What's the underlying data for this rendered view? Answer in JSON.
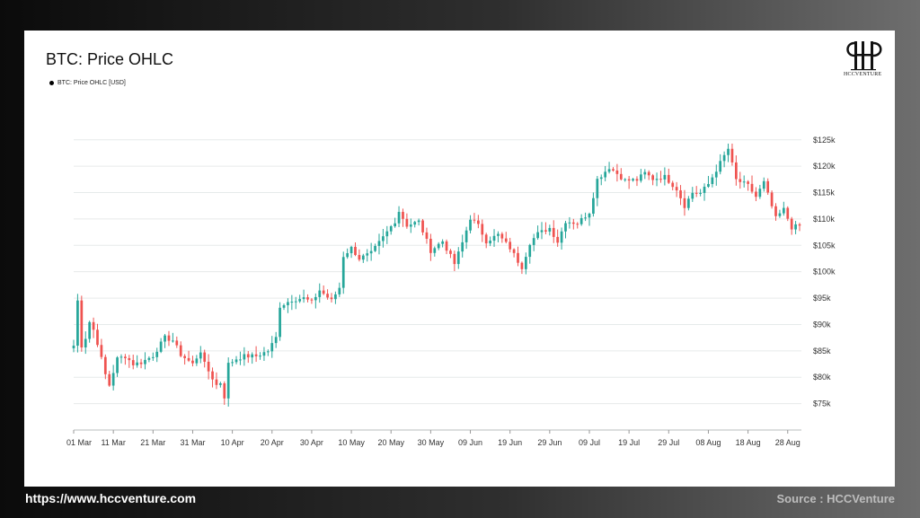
{
  "footer": {
    "url": "https://www.hccventure.com",
    "source": "Source : HCCVenture"
  },
  "logo": {
    "text": "HCCVENTURE"
  },
  "colors": {
    "up": "#26a69a",
    "down": "#ef5350",
    "grid": "#e6eaea"
  },
  "chart_data": {
    "type": "candlestick",
    "title": "BTC: Price OHLC",
    "legend": [
      "BTC: Price OHLC [USD]"
    ],
    "legend_position": "top-left",
    "grid": true,
    "y_axis": {
      "position": "right",
      "ylim": [
        70000,
        127000
      ],
      "ticks": [
        75000,
        80000,
        85000,
        90000,
        95000,
        100000,
        105000,
        110000,
        115000,
        120000,
        125000
      ],
      "tick_labels": [
        "$75k",
        "$80k",
        "$85k",
        "$90k",
        "$95k",
        "$100k",
        "$105k",
        "$110k",
        "$115k",
        "$120k",
        "$125k"
      ]
    },
    "x_axis": {
      "start": "2025-03-01",
      "end": "2025-08-31",
      "tick_dates": [
        "2025-03-01",
        "2025-03-11",
        "2025-03-21",
        "2025-03-31",
        "2025-04-10",
        "2025-04-20",
        "2025-04-30",
        "2025-05-10",
        "2025-05-20",
        "2025-05-30",
        "2025-06-09",
        "2025-06-19",
        "2025-06-29",
        "2025-07-09",
        "2025-07-19",
        "2025-07-29",
        "2025-08-08",
        "2025-08-18",
        "2025-08-28"
      ],
      "tick_labels": [
        "01 Mar",
        "11 Mar",
        "21 Mar",
        "31 Mar",
        "10 Apr",
        "20 Apr",
        "30 Apr",
        "10 May",
        "20 May",
        "30 May",
        "09 Jun",
        "19 Jun",
        "29 Jun",
        "09 Jul",
        "19 Jul",
        "29 Jul",
        "08 Aug",
        "18 Aug",
        "28 Aug"
      ]
    },
    "close_anchors": [
      [
        "2025-03-01",
        86000
      ],
      [
        "2025-03-02",
        94500
      ],
      [
        "2025-03-03",
        86000
      ],
      [
        "2025-03-04",
        87500
      ],
      [
        "2025-03-05",
        90500
      ],
      [
        "2025-03-06",
        89000
      ],
      [
        "2025-03-07",
        86500
      ],
      [
        "2025-03-09",
        80500
      ],
      [
        "2025-03-10",
        78500
      ],
      [
        "2025-03-12",
        83500
      ],
      [
        "2025-03-14",
        84000
      ],
      [
        "2025-03-16",
        82500
      ],
      [
        "2025-03-18",
        82800
      ],
      [
        "2025-03-21",
        84100
      ],
      [
        "2025-03-24",
        87500
      ],
      [
        "2025-03-26",
        87000
      ],
      [
        "2025-03-28",
        84300
      ],
      [
        "2025-03-31",
        82500
      ],
      [
        "2025-04-02",
        85000
      ],
      [
        "2025-04-03",
        82500
      ],
      [
        "2025-04-06",
        78500
      ],
      [
        "2025-04-07",
        79000
      ],
      [
        "2025-04-08",
        76300
      ],
      [
        "2025-04-09",
        82500
      ],
      [
        "2025-04-11",
        83500
      ],
      [
        "2025-04-13",
        84000
      ],
      [
        "2025-04-16",
        84000
      ],
      [
        "2025-04-19",
        85000
      ],
      [
        "2025-04-21",
        87500
      ],
      [
        "2025-04-22",
        93500
      ],
      [
        "2025-04-25",
        94700
      ],
      [
        "2025-04-28",
        95000
      ],
      [
        "2025-04-30",
        94200
      ],
      [
        "2025-05-02",
        96500
      ],
      [
        "2025-05-05",
        94500
      ],
      [
        "2025-05-07",
        97000
      ],
      [
        "2025-05-08",
        103000
      ],
      [
        "2025-05-10",
        104500
      ],
      [
        "2025-05-12",
        102500
      ],
      [
        "2025-05-15",
        103500
      ],
      [
        "2025-05-18",
        106500
      ],
      [
        "2025-05-21",
        109600
      ],
      [
        "2025-05-22",
        111500
      ],
      [
        "2025-05-24",
        108800
      ],
      [
        "2025-05-27",
        109500
      ],
      [
        "2025-05-30",
        104000
      ],
      [
        "2025-06-02",
        105800
      ],
      [
        "2025-06-05",
        101500
      ],
      [
        "2025-06-07",
        105500
      ],
      [
        "2025-06-09",
        110200
      ],
      [
        "2025-06-11",
        108700
      ],
      [
        "2025-06-13",
        105800
      ],
      [
        "2025-06-16",
        107000
      ],
      [
        "2025-06-19",
        104500
      ],
      [
        "2025-06-21",
        102000
      ],
      [
        "2025-06-22",
        100900
      ],
      [
        "2025-06-24",
        105500
      ],
      [
        "2025-06-26",
        107200
      ],
      [
        "2025-06-29",
        108300
      ],
      [
        "2025-07-01",
        105700
      ],
      [
        "2025-07-03",
        109600
      ],
      [
        "2025-07-06",
        109200
      ],
      [
        "2025-07-09",
        111300
      ],
      [
        "2025-07-11",
        117500
      ],
      [
        "2025-07-14",
        119800
      ],
      [
        "2025-07-16",
        118600
      ],
      [
        "2025-07-18",
        117300
      ],
      [
        "2025-07-21",
        117400
      ],
      [
        "2025-07-23",
        118700
      ],
      [
        "2025-07-25",
        117600
      ],
      [
        "2025-07-28",
        118000
      ],
      [
        "2025-07-31",
        115700
      ],
      [
        "2025-08-02",
        112500
      ],
      [
        "2025-08-04",
        115000
      ],
      [
        "2025-08-06",
        114900
      ],
      [
        "2025-08-08",
        116600
      ],
      [
        "2025-08-10",
        119300
      ],
      [
        "2025-08-13",
        123300
      ],
      [
        "2025-08-15",
        117400
      ],
      [
        "2025-08-18",
        116300
      ],
      [
        "2025-08-20",
        114200
      ],
      [
        "2025-08-22",
        116900
      ],
      [
        "2025-08-25",
        110100
      ],
      [
        "2025-08-27",
        111800
      ],
      [
        "2025-08-29",
        108400
      ],
      [
        "2025-08-31",
        108700
      ]
    ]
  }
}
